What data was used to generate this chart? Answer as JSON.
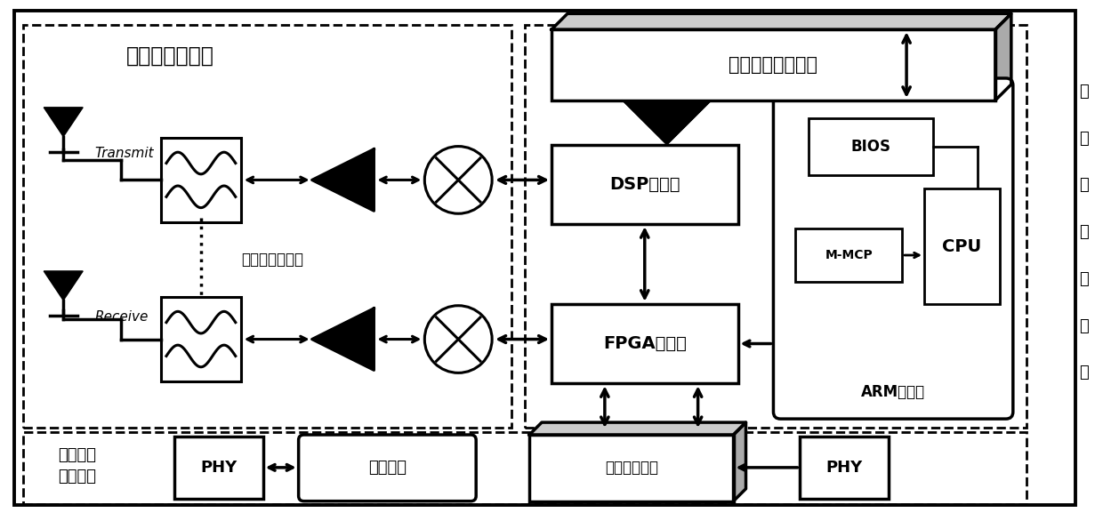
{
  "bg": "#ffffff",
  "lc": "#000000",
  "fw": 12.4,
  "fh": 5.77,
  "labels": {
    "wireless_title": "可重构无线模块",
    "control_vertical": [
      "可",
      "重",
      "构",
      "控",
      "制",
      "模",
      "块"
    ],
    "wired_title": "通用有线\n通信模块",
    "transmit": "Transmit",
    "receive": "Receive",
    "broadband": "宽频带射频通道",
    "config_interface": "配置收发通信接口",
    "dsp": "DSP子系统",
    "fpga": "FPGA子系统",
    "arm": "ARM子系统",
    "bios": "BIOS",
    "mmcp": "M-MCP",
    "cpu": "CPU",
    "phy_left": "PHY",
    "optical": "光收发器",
    "bus_board": "总线通讯板卡",
    "phy_right": "PHY"
  }
}
